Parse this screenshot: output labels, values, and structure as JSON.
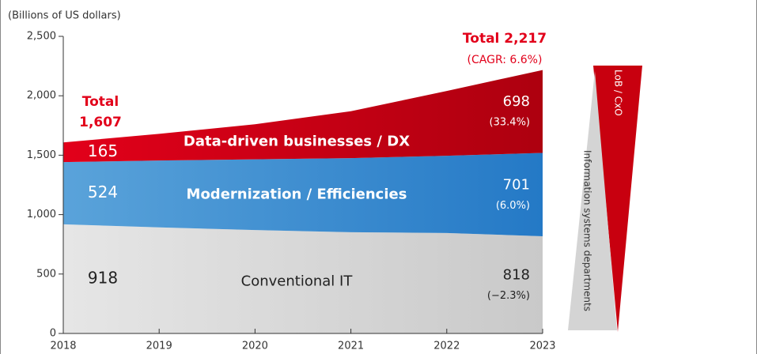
{
  "chart_data": {
    "type": "stacked_area",
    "y_label": "(Billions of US dollars)",
    "x": [
      2018,
      2019,
      2020,
      2021,
      2022,
      2023
    ],
    "xlim": [
      2018,
      2023
    ],
    "xticks": [
      2018,
      2019,
      2020,
      2021,
      2022,
      2023
    ],
    "ylim": [
      0,
      2500
    ],
    "yticks": [
      0,
      500,
      {
        "value": 1000,
        "label": "1,000"
      },
      {
        "value": 1500,
        "label": "1,500"
      },
      {
        "value": 2000,
        "label": "2,000"
      },
      {
        "value": 2500,
        "label": "2,500"
      }
    ],
    "series": [
      {
        "name": "Conventional IT",
        "colors": [
          "#e6e6e6",
          "#c9c9c9"
        ],
        "text_color": "#222222",
        "values": [
          918,
          893,
          870,
          852,
          845,
          818
        ],
        "cagr_label": "(−2.3%)"
      },
      {
        "name": "Modernization / Efficiencies",
        "colors": [
          "#5aa3da",
          "#2479c6"
        ],
        "text_color": "#ffffff",
        "values": [
          524,
          562,
          595,
          623,
          650,
          701
        ],
        "cagr_label": "(6.0%)"
      },
      {
        "name": "Data-driven businesses / DX",
        "colors": [
          "#e2001a",
          "#ad000f"
        ],
        "text_color": "#ffffff",
        "values": [
          165,
          225,
          295,
          395,
          545,
          698
        ],
        "cagr_label": "(33.4%)"
      }
    ],
    "annotations": [
      "Total",
      "1,607",
      "Total 2,217",
      "(CAGR: 6.6%)"
    ],
    "side_labels": [
      "LoB / CxO",
      "Information systems departments"
    ]
  }
}
